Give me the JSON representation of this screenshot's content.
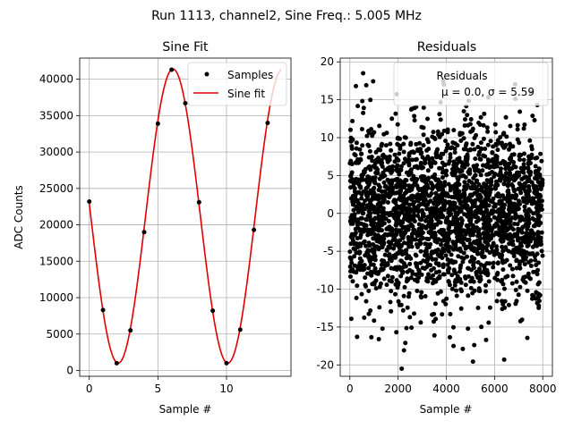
{
  "figure": {
    "suptitle": "Run 1113, channel2, Sine Freq.: 5.005 MHz"
  },
  "colors": {
    "samples": "#000000",
    "fit": "#e00000",
    "grid": "#b0b0b0"
  },
  "chart_data": [
    {
      "type": "scatter",
      "title": "Sine Fit",
      "xlabel": "Sample #",
      "ylabel": "ADC Counts",
      "xlim": [
        -0.7,
        14.7
      ],
      "ylim": [
        -800,
        42900
      ],
      "xticks": [
        0,
        5,
        10
      ],
      "yticks": [
        0,
        5000,
        10000,
        15000,
        20000,
        25000,
        30000,
        35000,
        40000
      ],
      "grid": true,
      "legend_position": "top-right",
      "series": [
        {
          "name": "Samples",
          "kind": "points",
          "x": [
            0,
            1,
            2,
            3,
            4,
            5,
            6,
            7,
            8,
            9,
            10,
            11,
            12,
            13
          ],
          "y": [
            23200,
            8300,
            1000,
            5500,
            19000,
            33900,
            41300,
            36700,
            23100,
            8200,
            1000,
            5600,
            19300,
            34000
          ]
        },
        {
          "name": "Sine fit",
          "kind": "line",
          "model": {
            "offset": 21200,
            "amplitude": 20200,
            "period": 7.99,
            "peak_x": 6.1,
            "x_range": [
              0,
              14
            ]
          }
        }
      ]
    },
    {
      "type": "scatter",
      "title": "Residuals",
      "xlabel": "Sample #",
      "xlim": [
        -400,
        8400
      ],
      "ylim": [
        -21.5,
        20.5
      ],
      "xticks": [
        0,
        2000,
        4000,
        6000,
        8000
      ],
      "yticks": [
        -20,
        -15,
        -10,
        -5,
        0,
        5,
        10,
        15,
        20
      ],
      "grid": true,
      "legend_position": "top-right",
      "legend_title": "Residuals",
      "legend_text": "μ = 0.0, σ = 5.59",
      "series": [
        {
          "kind": "residual-cloud",
          "count": 8000,
          "mean": 0.0,
          "sigma": 5.59,
          "extremes": [
            {
              "x": 550,
              "y": 18.5
            },
            {
              "x": 2150,
              "y": -20.5
            },
            {
              "x": 6400,
              "y": -19.3
            },
            {
              "x": 3900,
              "y": 17
            },
            {
              "x": 250,
              "y": 16.8
            },
            {
              "x": 300,
              "y": -16.3
            },
            {
              "x": 1200,
              "y": -16.6
            },
            {
              "x": 4300,
              "y": -17.5
            },
            {
              "x": 5650,
              "y": -16.7
            },
            {
              "x": 2300,
              "y": -17.1
            }
          ]
        }
      ]
    }
  ]
}
